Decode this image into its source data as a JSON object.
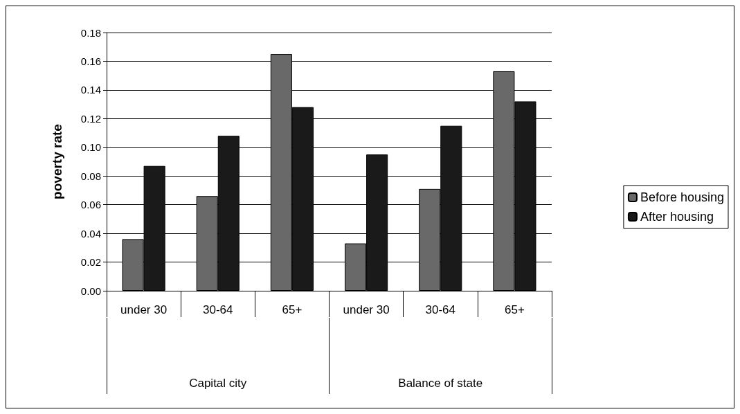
{
  "chart_data": {
    "type": "bar",
    "ylabel": "poverty rate",
    "categories": [
      "under 30",
      "30-64",
      "65+",
      "under 30",
      "30-64",
      "65+"
    ],
    "annotations": [
      "Capital city",
      "Balance of state"
    ],
    "series": [
      {
        "name": "Before housing",
        "color": "#696969",
        "values": [
          0.036,
          0.066,
          0.165,
          0.033,
          0.071,
          0.153
        ]
      },
      {
        "name": "After housing",
        "color": "#1a1a1a",
        "values": [
          0.087,
          0.108,
          0.128,
          0.095,
          0.115,
          0.132
        ]
      }
    ],
    "ylim": [
      0,
      0.18
    ],
    "yticks": [
      {
        "value": 0,
        "label": "0.00"
      },
      {
        "value": 0.02,
        "label": "0.02"
      },
      {
        "value": 0.04,
        "label": "0.04"
      },
      {
        "value": 0.06,
        "label": "0.06"
      },
      {
        "value": 0.08,
        "label": "0.08"
      },
      {
        "value": 0.1,
        "label": "0.10"
      },
      {
        "value": 0.12,
        "label": "0.12"
      },
      {
        "value": 0.14,
        "label": "0.14"
      },
      {
        "value": 0.16,
        "label": "0.16"
      },
      {
        "value": 0.18,
        "label": "0.18"
      }
    ],
    "grid": "y",
    "legend": "right"
  }
}
